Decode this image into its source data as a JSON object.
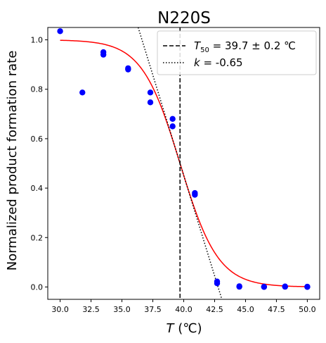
{
  "chart_data": {
    "type": "scatter",
    "title": "N220S",
    "xlabel": {
      "symbol": "T",
      "unit": " (℃)"
    },
    "ylabel": "Normalized product formation rate",
    "xlim": [
      29.0,
      51.0
    ],
    "ylim": [
      -0.05,
      1.05
    ],
    "xticks": [
      30.0,
      32.5,
      35.0,
      37.5,
      40.0,
      42.5,
      45.0,
      47.5,
      50.0
    ],
    "xtick_labels": [
      "30.0",
      "32.5",
      "35.0",
      "37.5",
      "40.0",
      "42.5",
      "45.0",
      "47.5",
      "50.0"
    ],
    "yticks": [
      0.0,
      0.2,
      0.4,
      0.6,
      0.8,
      1.0
    ],
    "ytick_labels": [
      "0.0",
      "0.2",
      "0.4",
      "0.6",
      "0.8",
      "1.0"
    ],
    "grid": false,
    "legend_position": "top-right",
    "points": {
      "color": "#0000ff",
      "x": [
        30.0,
        31.8,
        33.5,
        33.5,
        35.5,
        35.5,
        37.3,
        37.3,
        39.1,
        39.1,
        40.9,
        40.9,
        42.7,
        42.7,
        44.5,
        44.5,
        46.5,
        46.5,
        48.2,
        48.2,
        50.0,
        50.0
      ],
      "y": [
        1.035,
        0.787,
        0.95,
        0.94,
        0.885,
        0.88,
        0.787,
        0.747,
        0.68,
        0.65,
        0.38,
        0.373,
        0.022,
        0.015,
        0.003,
        0.001,
        0.001,
        0.0,
        0.002,
        0.001,
        0.001,
        0.0
      ]
    },
    "fit": {
      "color": "#ff0000",
      "t50": 39.7,
      "k": -0.65
    },
    "t50_line": {
      "x": 39.7,
      "color": "#000000",
      "style": "dashed"
    },
    "slope_line": {
      "x0": 39.7,
      "y0": 0.5,
      "slope": -0.1625,
      "color": "#000000",
      "style": "dotted"
    },
    "legend": [
      {
        "style": "dashed",
        "symbol": "T",
        "subscript": "50",
        "text": " = 39.7 ± 0.2 ℃"
      },
      {
        "style": "dotted",
        "symbol": "k",
        "subscript": "",
        "text": " = -0.65"
      }
    ]
  }
}
